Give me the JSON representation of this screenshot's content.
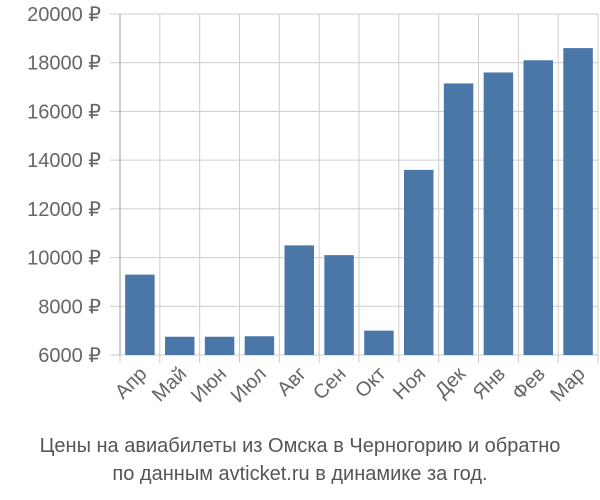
{
  "chart_data": {
    "type": "bar",
    "categories": [
      "Апр",
      "Май",
      "Июн",
      "Июл",
      "Авг",
      "Сен",
      "Окт",
      "Ноя",
      "Дек",
      "Янв",
      "Фев",
      "Мар"
    ],
    "values": [
      9300,
      6750,
      6750,
      6770,
      10500,
      10100,
      7000,
      13600,
      17150,
      17600,
      18100,
      18600
    ],
    "y_ticks": [
      "6000 ₽",
      "8000 ₽",
      "10000 ₽",
      "12000 ₽",
      "14000 ₽",
      "16000 ₽",
      "18000 ₽",
      "20000 ₽"
    ],
    "y_tick_values": [
      6000,
      8000,
      10000,
      12000,
      14000,
      16000,
      18000,
      20000
    ],
    "ylim": [
      6000,
      20000
    ],
    "grid": true,
    "bar_color": "#4a76a8",
    "grid_color": "#cccccc",
    "axis_color": "#999999",
    "tick_label_color": "#666666"
  },
  "caption": {
    "line1": "Цены на авиабилеты из Омска в Черногорию и обратно",
    "line2": "по данным avticket.ru в динамике за год."
  }
}
